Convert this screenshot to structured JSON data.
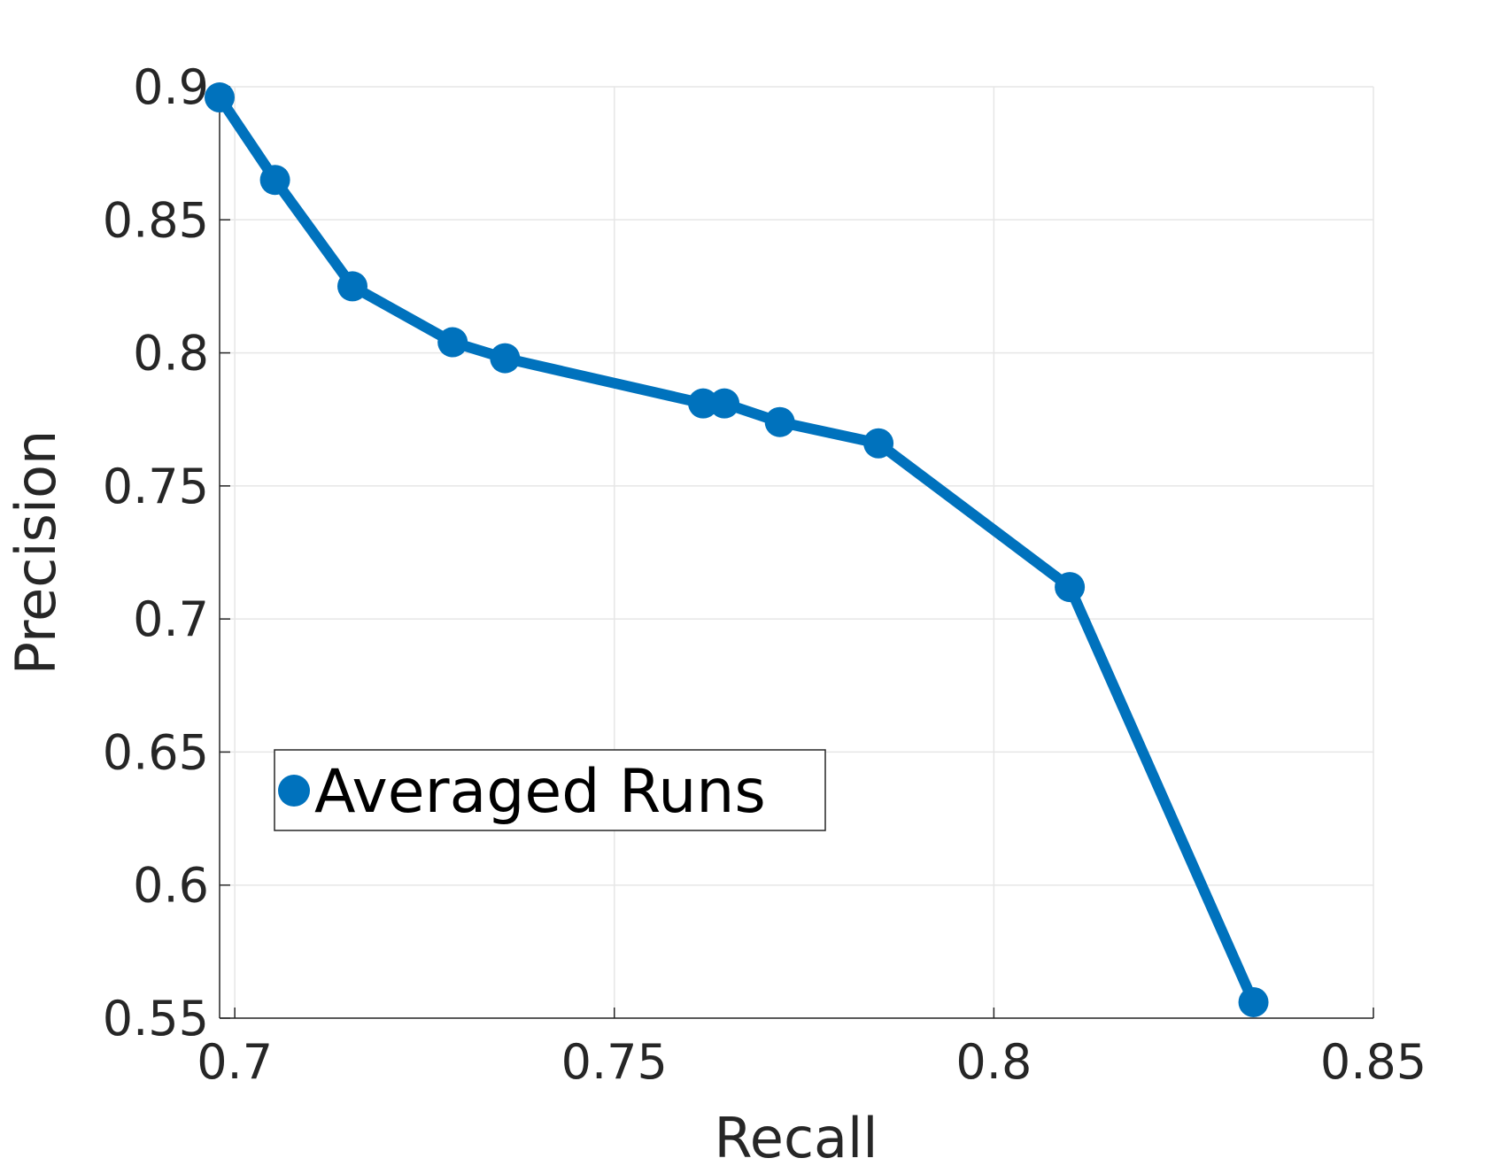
{
  "chart_data": {
    "type": "line",
    "xlabel": "Recall",
    "ylabel": "Precision",
    "xlim": [
      0.698,
      0.85
    ],
    "ylim": [
      0.55,
      0.9
    ],
    "xticks": [
      0.7,
      0.75,
      0.8,
      0.85
    ],
    "xtick_labels": [
      "0.7",
      "0.75",
      "0.8",
      "0.85"
    ],
    "yticks": [
      0.55,
      0.6,
      0.65,
      0.7,
      0.75,
      0.8,
      0.85,
      0.9
    ],
    "ytick_labels": [
      "0.55",
      "0.6",
      "0.65",
      "0.7",
      "0.75",
      "0.8",
      "0.85",
      "0.9"
    ],
    "grid": true,
    "legend_position": "center-left",
    "series": [
      {
        "name": "Averaged Runs",
        "color": "#0072BD",
        "marker": "circle",
        "x": [
          0.698,
          0.7053,
          0.7155,
          0.7287,
          0.7356,
          0.7617,
          0.7645,
          0.7718,
          0.7848,
          0.81,
          0.8342
        ],
        "y": [
          0.896,
          0.865,
          0.825,
          0.804,
          0.798,
          0.781,
          0.781,
          0.774,
          0.766,
          0.712,
          0.556
        ]
      }
    ]
  }
}
